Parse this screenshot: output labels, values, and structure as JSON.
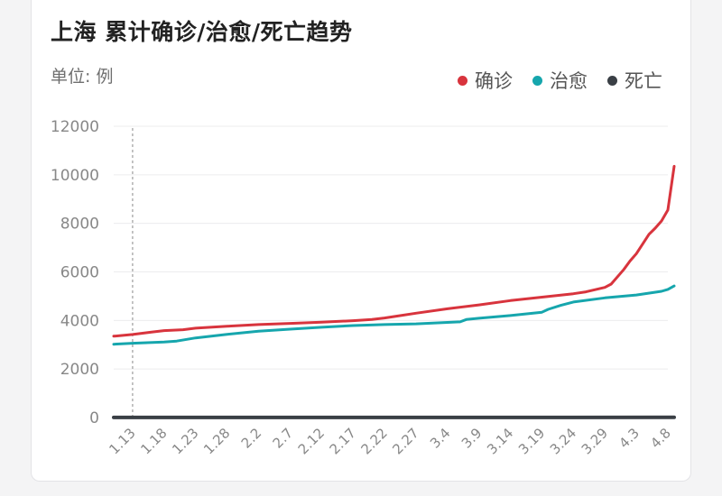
{
  "chart_data": {
    "type": "line",
    "title": "上海 累计确诊/治愈/死亡趋势",
    "unit_label": "单位: 例",
    "xlabel": "",
    "ylabel": "",
    "ylim": [
      0,
      12000
    ],
    "y_ticks": [
      "0",
      "2000",
      "4000",
      "6000",
      "8000",
      "10000",
      "12000"
    ],
    "x_tick_labels": [
      "1.13",
      "1.18",
      "1.23",
      "1.28",
      "2.2",
      "2.7",
      "2.12",
      "2.17",
      "2.22",
      "2.27",
      "3.4",
      "3.9",
      "3.14",
      "3.19",
      "3.24",
      "3.29",
      "4.3",
      "4.8"
    ],
    "x_day_index": [
      0,
      5,
      10,
      15,
      20,
      25,
      30,
      35,
      40,
      45,
      50,
      55,
      60,
      65,
      70,
      75,
      80,
      85
    ],
    "x_domain_days": [
      -3,
      85
    ],
    "marker_day": 0,
    "legend_position": "top-right",
    "series": [
      {
        "name": "确诊",
        "color": "#d8343d",
        "points": [
          [
            -3,
            3350
          ],
          [
            0,
            3420
          ],
          [
            3,
            3520
          ],
          [
            5,
            3580
          ],
          [
            8,
            3620
          ],
          [
            10,
            3680
          ],
          [
            15,
            3760
          ],
          [
            20,
            3830
          ],
          [
            25,
            3880
          ],
          [
            30,
            3930
          ],
          [
            35,
            3990
          ],
          [
            38,
            4040
          ],
          [
            40,
            4100
          ],
          [
            42,
            4180
          ],
          [
            45,
            4300
          ],
          [
            50,
            4480
          ],
          [
            55,
            4640
          ],
          [
            60,
            4820
          ],
          [
            65,
            4960
          ],
          [
            70,
            5100
          ],
          [
            72,
            5180
          ],
          [
            75,
            5360
          ],
          [
            76,
            5500
          ],
          [
            78,
            6100
          ],
          [
            79,
            6450
          ],
          [
            80,
            6750
          ],
          [
            82,
            7550
          ],
          [
            83,
            7800
          ],
          [
            84,
            8100
          ],
          [
            85,
            8550
          ],
          [
            86,
            10350
          ]
        ]
      },
      {
        "name": "治愈",
        "color": "#16a6ad",
        "points": [
          [
            -3,
            3020
          ],
          [
            0,
            3060
          ],
          [
            5,
            3110
          ],
          [
            7,
            3150
          ],
          [
            10,
            3280
          ],
          [
            15,
            3430
          ],
          [
            20,
            3560
          ],
          [
            25,
            3640
          ],
          [
            30,
            3720
          ],
          [
            35,
            3790
          ],
          [
            40,
            3830
          ],
          [
            45,
            3860
          ],
          [
            50,
            3920
          ],
          [
            52,
            3940
          ],
          [
            53,
            4040
          ],
          [
            55,
            4090
          ],
          [
            60,
            4200
          ],
          [
            65,
            4340
          ],
          [
            66,
            4460
          ],
          [
            68,
            4620
          ],
          [
            70,
            4760
          ],
          [
            75,
            4930
          ],
          [
            80,
            5050
          ],
          [
            84,
            5200
          ],
          [
            85,
            5280
          ],
          [
            86,
            5420
          ]
        ]
      },
      {
        "name": "死亡",
        "color": "#3a3f45",
        "points": [
          [
            -3,
            3
          ],
          [
            86,
            7
          ]
        ]
      }
    ]
  }
}
